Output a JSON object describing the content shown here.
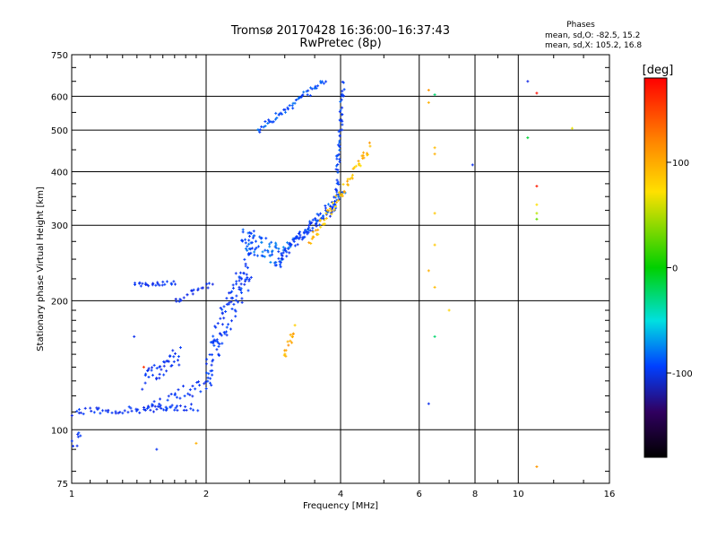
{
  "chart_data": {
    "type": "scatter",
    "title": "Tromsø 20170428 16:36:00–16:37:43",
    "subtitle": "RwPretec (8p)",
    "xlabel": "Frequency [MHz]",
    "ylabel": "Stationary phase Virtual Height [km]",
    "x_scale": "log",
    "y_scale": "log",
    "xlim": [
      1,
      16
    ],
    "ylim": [
      75,
      750
    ],
    "x_ticks": [
      1,
      2,
      4,
      6,
      8,
      10,
      16
    ],
    "x_tick_labels": [
      "1",
      "2",
      "4",
      "6",
      "8",
      "10",
      "16"
    ],
    "y_ticks": [
      75,
      100,
      200,
      300,
      400,
      500,
      600,
      750
    ],
    "y_tick_labels": [
      "75",
      "100",
      "200",
      "300",
      "400",
      "500",
      "600",
      "750"
    ],
    "grid": true,
    "legend": {
      "heading": "Phases",
      "lines": [
        "mean, sd,O: -82.5, 15.2",
        "mean, sd,X: 105.2, 16.8"
      ]
    },
    "colorbar": {
      "label": "[deg]",
      "range": [
        -180,
        180
      ],
      "ticks": [
        100,
        0,
        -100
      ],
      "tick_labels": [
        "100",
        "0",
        "-100"
      ]
    },
    "traces": [
      {
        "name": "o-mode E/F1 low",
        "x_range": [
          1.0,
          1.9
        ],
        "y_start": 110,
        "y_end": 113,
        "phase": -95,
        "n": 60,
        "spread": 0.02
      },
      {
        "name": "o-mode low lower branch",
        "x_range": [
          1.45,
          2.05
        ],
        "y_start": 110,
        "y_end": 130,
        "phase": -90,
        "n": 40,
        "spread": 0.04
      },
      {
        "name": "o-mode cusp low",
        "x_range": [
          1.45,
          1.75
        ],
        "y_start": 130,
        "y_end": 150,
        "phase": -95,
        "n": 40,
        "spread": 0.05
      },
      {
        "name": "o-mode 220 shelf",
        "x_range": [
          1.38,
          1.7
        ],
        "y_start": 218,
        "y_end": 220,
        "phase": -95,
        "n": 25,
        "spread": 0.01
      },
      {
        "name": "o-mode shelf rise",
        "x_range": [
          1.7,
          2.05
        ],
        "y_start": 200,
        "y_end": 218,
        "phase": -100,
        "n": 20,
        "spread": 0.02
      },
      {
        "name": "o-mode F1 spread",
        "x_range": [
          2.0,
          2.55
        ],
        "y_start": 140,
        "y_end": 260,
        "phase": -90,
        "n": 120,
        "spread": 0.12
      },
      {
        "name": "o-mode F2 cusp",
        "x_range": [
          2.4,
          3.0
        ],
        "y_start": 280,
        "y_end": 250,
        "phase": -75,
        "n": 70,
        "spread": 0.06
      },
      {
        "name": "o-mode F2 lower",
        "x_range": [
          2.9,
          3.9
        ],
        "y_start": 250,
        "y_end": 335,
        "phase": -95,
        "n": 60,
        "spread": 0.03
      },
      {
        "name": "o-mode F2 upper",
        "x_range": [
          3.0,
          4.1
        ],
        "y_start": 265,
        "y_end": 355,
        "phase": -80,
        "n": 50,
        "spread": 0.03
      },
      {
        "name": "o-mode F2 critical",
        "x_range": [
          3.9,
          4.05
        ],
        "y_start": 340,
        "y_end": 640,
        "phase": -85,
        "n": 55,
        "spread": 0.03
      },
      {
        "name": "o-mode 2F echo",
        "x_range": [
          2.6,
          3.7
        ],
        "y_start": 500,
        "y_end": 650,
        "phase": -80,
        "n": 55,
        "spread": 0.02
      },
      {
        "name": "x-mode F2",
        "x_range": [
          3.4,
          4.65
        ],
        "y_start": 270,
        "y_end": 460,
        "phase": 105,
        "n": 65,
        "spread": 0.03
      },
      {
        "name": "x-mode 160 cluster",
        "x_range": [
          3.0,
          3.15
        ],
        "y_start": 150,
        "y_end": 172,
        "phase": 110,
        "n": 15,
        "spread": 0.03
      },
      {
        "name": "scattered low",
        "x_range": [
          1.0,
          1.05
        ],
        "y_start": 92,
        "y_end": 97,
        "phase": -90,
        "n": 8,
        "spread": 0.03
      }
    ],
    "points": [
      {
        "x": 6.3,
        "y": 620,
        "phase": 120
      },
      {
        "x": 6.3,
        "y": 580,
        "phase": 110
      },
      {
        "x": 6.5,
        "y": 455,
        "phase": 105
      },
      {
        "x": 6.5,
        "y": 440,
        "phase": 110
      },
      {
        "x": 6.5,
        "y": 320,
        "phase": 100
      },
      {
        "x": 6.5,
        "y": 270,
        "phase": 100
      },
      {
        "x": 6.5,
        "y": 215,
        "phase": 105
      },
      {
        "x": 7.0,
        "y": 190,
        "phase": 95
      },
      {
        "x": 6.5,
        "y": 605,
        "phase": -20
      },
      {
        "x": 6.5,
        "y": 165,
        "phase": -20
      },
      {
        "x": 6.3,
        "y": 115,
        "phase": -100
      },
      {
        "x": 6.3,
        "y": 235,
        "phase": 110
      },
      {
        "x": 7.9,
        "y": 415,
        "phase": -100
      },
      {
        "x": 10.5,
        "y": 650,
        "phase": -110
      },
      {
        "x": 10.5,
        "y": 480,
        "phase": -10
      },
      {
        "x": 11.0,
        "y": 610,
        "phase": 175
      },
      {
        "x": 11.0,
        "y": 370,
        "phase": 170
      },
      {
        "x": 11.0,
        "y": 335,
        "phase": 90
      },
      {
        "x": 11.0,
        "y": 320,
        "phase": 60
      },
      {
        "x": 11.0,
        "y": 310,
        "phase": 30
      },
      {
        "x": 11.0,
        "y": 82,
        "phase": 120
      },
      {
        "x": 13.2,
        "y": 505,
        "phase": 80
      },
      {
        "x": 1.55,
        "y": 90,
        "phase": -95
      },
      {
        "x": 1.9,
        "y": 93,
        "phase": 110
      },
      {
        "x": 1.45,
        "y": 140,
        "phase": 160
      },
      {
        "x": 1.38,
        "y": 165,
        "phase": -100
      }
    ]
  }
}
